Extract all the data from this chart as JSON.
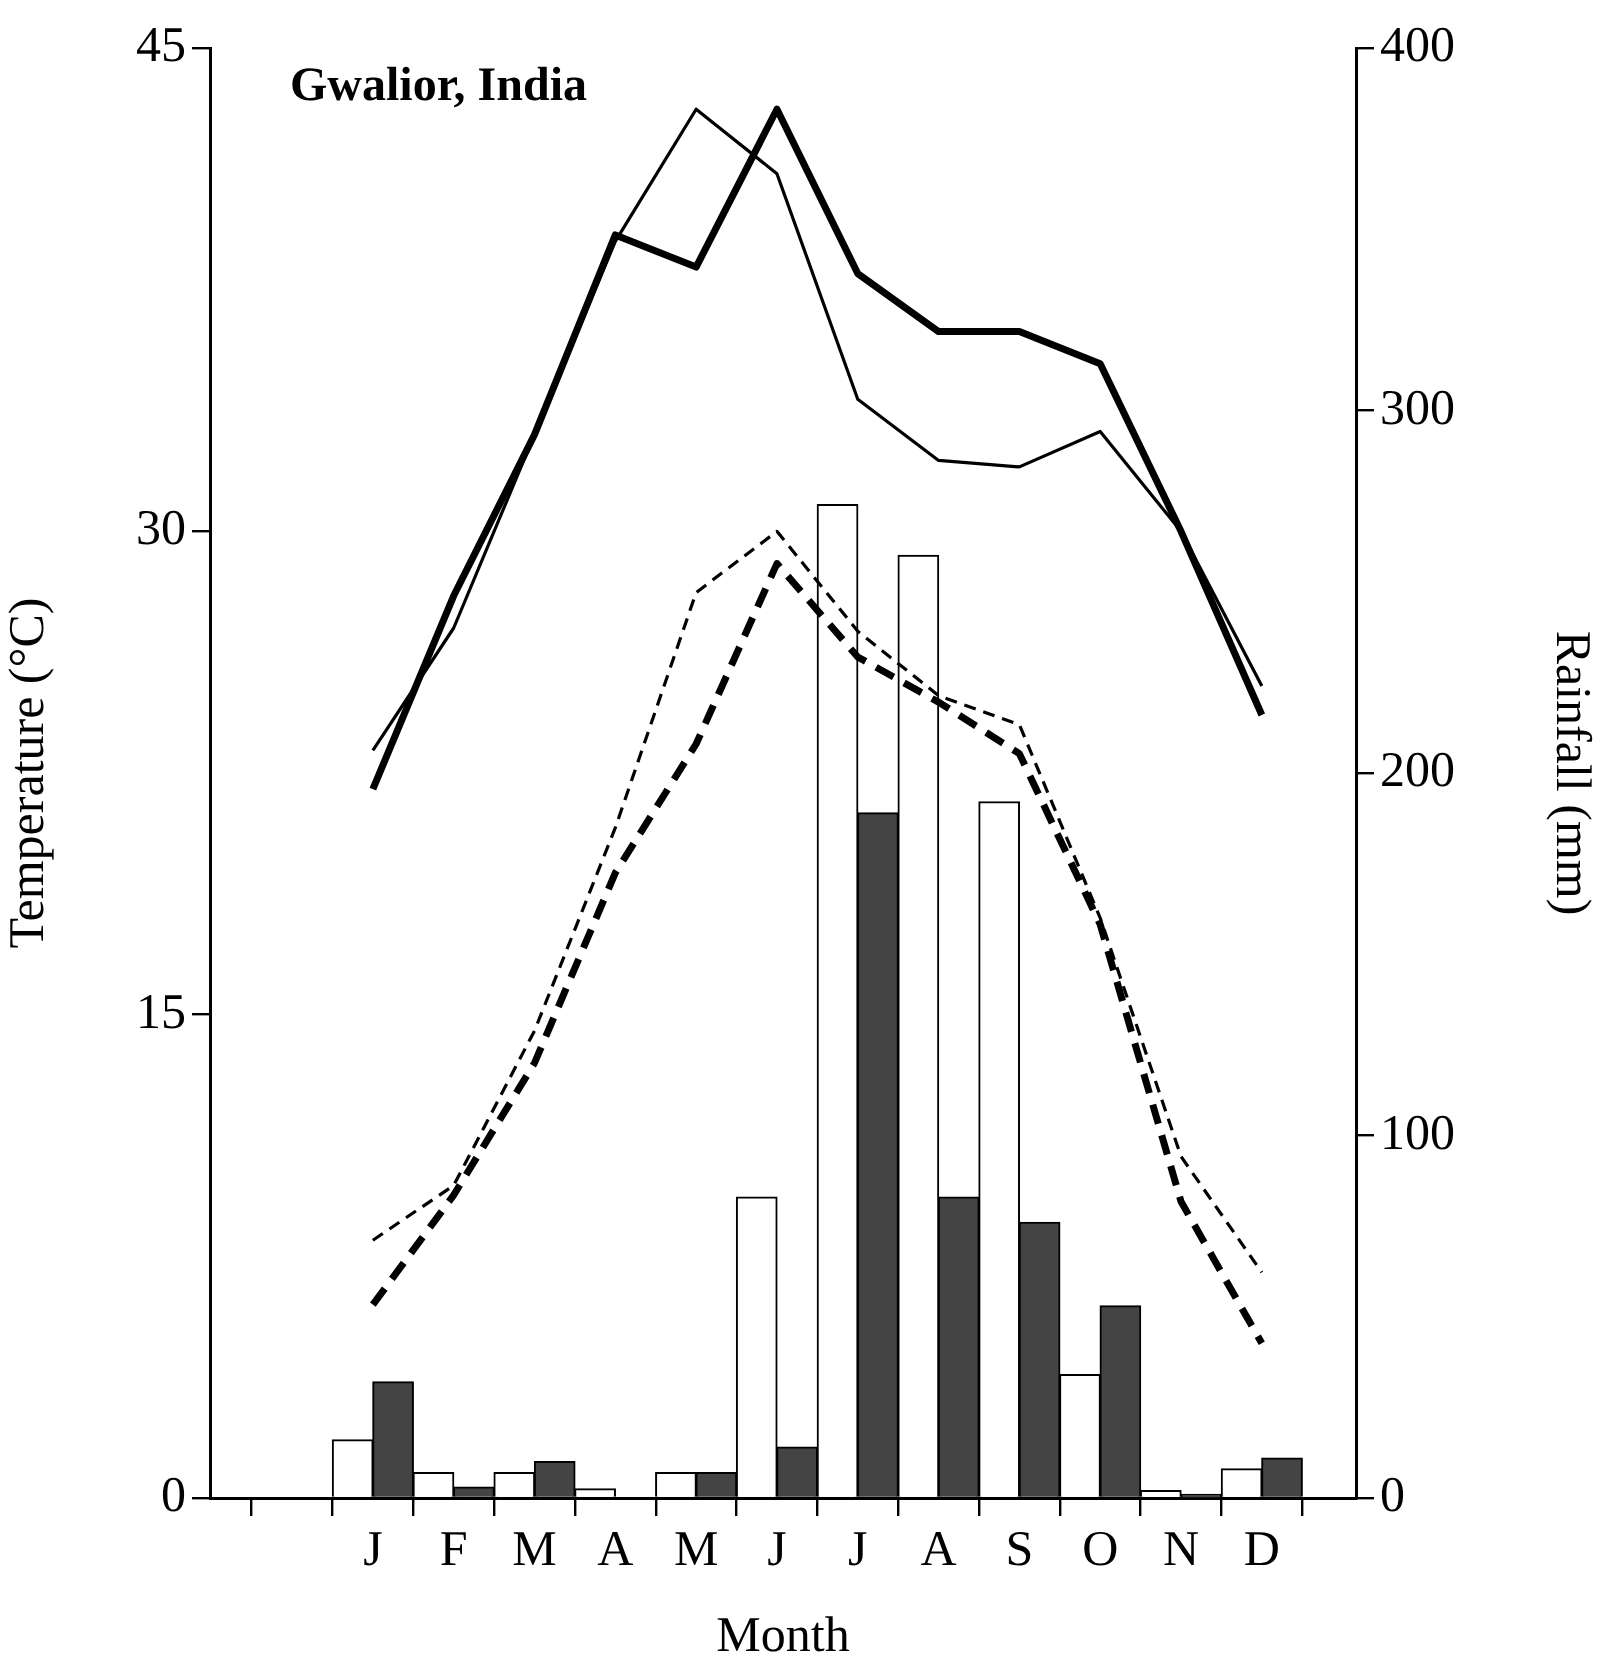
{
  "chart_data": {
    "type": "bar",
    "title": "Gwalior, India",
    "xlabel": "Month",
    "ylabel": "Temperature (°C)",
    "y2label": "Rainfall (mm)",
    "categories": [
      "J",
      "F",
      "M",
      "A",
      "M",
      "J",
      "J",
      "A",
      "S",
      "O",
      "N",
      "D"
    ],
    "ylim": [
      0,
      45
    ],
    "yticks": [
      0,
      15,
      30,
      45
    ],
    "y2lim": [
      0,
      400
    ],
    "y2ticks": [
      0,
      100,
      200,
      300,
      400
    ],
    "grid": false,
    "legend": false,
    "series": [
      {
        "axis": "y2",
        "color": "#ffffff",
        "values": [
          16,
          7,
          7,
          2.5,
          7,
          83,
          274,
          260,
          192,
          34,
          2,
          8
        ]
      },
      {
        "axis": "y2",
        "color": "#444444",
        "values": [
          32,
          3,
          10,
          0,
          7,
          14,
          189,
          83,
          76,
          53,
          1,
          11
        ]
      },
      {
        "type": "line",
        "axis": "y",
        "color": "#000000",
        "line_style": "solid",
        "values": [
          22,
          28,
          33,
          39.2,
          38.2,
          43.1,
          38,
          36.2,
          36.2,
          35.2,
          30,
          24.3
        ]
      },
      {
        "type": "line",
        "axis": "y",
        "color": "#000000",
        "line_style": "solid",
        "values": [
          23.2,
          27,
          33,
          39,
          43.1,
          41.1,
          34.1,
          32.2,
          32,
          33.1,
          30,
          25.2
        ]
      },
      {
        "type": "line",
        "axis": "y",
        "color": "#000000",
        "line_style": "dashed",
        "values": [
          6,
          9.4,
          13.5,
          19.4,
          23.4,
          29,
          26.1,
          24.7,
          23.1,
          17.8,
          9.2,
          4.8
        ]
      },
      {
        "type": "line",
        "axis": "y",
        "color": "#000000",
        "line_style": "dashed",
        "values": [
          8,
          9.7,
          14.5,
          20.8,
          28.1,
          30,
          26.9,
          24.9,
          24,
          18,
          10.6,
          7
        ]
      }
    ]
  }
}
